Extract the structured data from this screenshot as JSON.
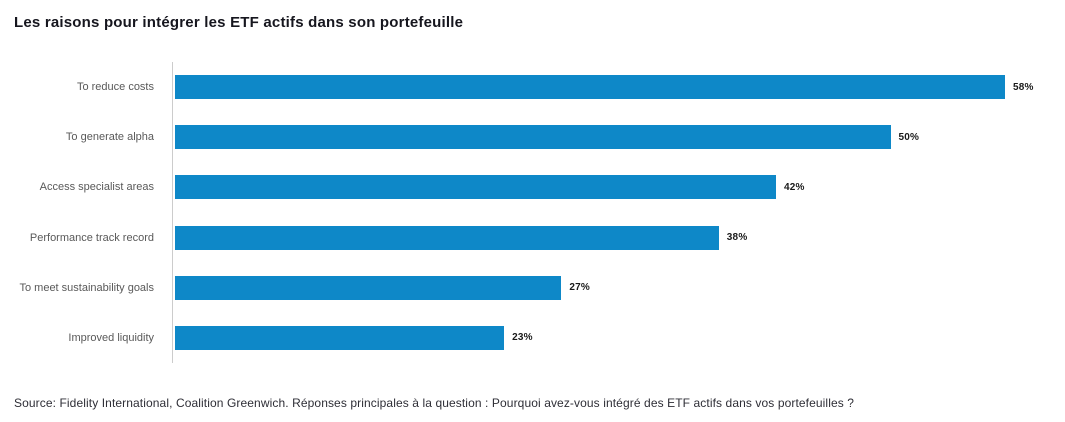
{
  "title": "Les raisons pour intégrer les ETF actifs dans son portefeuille",
  "source": "Source: Fidelity International, Coalition Greenwich. Réponses principales à la question : Pourquoi avez-vous intégré des ETF actifs dans vos portefeuilles ?",
  "chart_data": {
    "type": "bar",
    "orientation": "horizontal",
    "title": "Les raisons pour intégrer les ETF actifs dans son portefeuille",
    "categories": [
      "To reduce costs",
      "To generate alpha",
      "Access specialist areas",
      "Performance track record",
      "To meet sustainability goals",
      "Improved liquidity"
    ],
    "values": [
      58,
      50,
      42,
      38,
      27,
      23
    ],
    "value_suffix": "%",
    "value_labels_shown": true,
    "xlabel": "",
    "ylabel": "",
    "legend": false,
    "grid": false,
    "bar_color": "#0e88c8",
    "axis_line_color": "#cccccc",
    "category_label_color": "#595959",
    "value_label_color": "#1a1a1a"
  }
}
